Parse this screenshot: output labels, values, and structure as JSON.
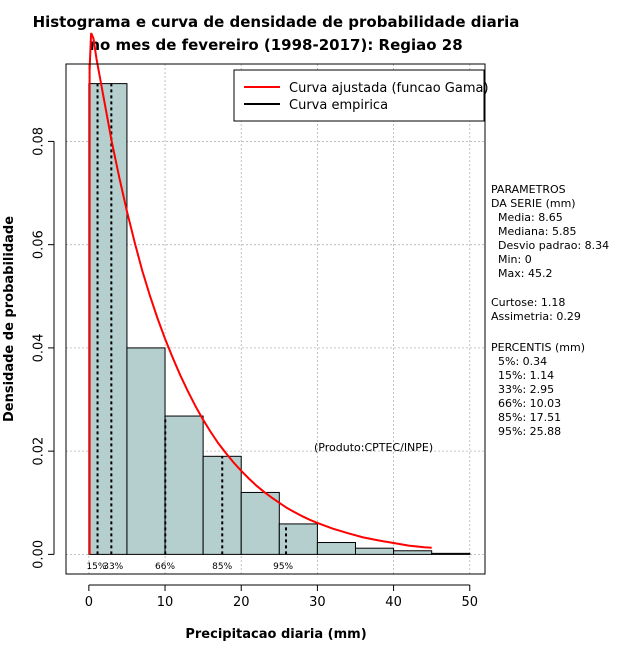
{
  "chart_data": {
    "type": "bar",
    "title": [
      "Histograma e curva de densidade de probabilidade diaria",
      "no mes de fevereiro (1998-2017): Regiao 28"
    ],
    "xlabel": "Precipitacao diaria (mm)",
    "ylabel": "Densidade de probabilidade",
    "xlim": [
      -3,
      52
    ],
    "ylim": [
      -0.0038,
      0.095
    ],
    "xticks": [
      0,
      10,
      20,
      30,
      40,
      50
    ],
    "yticks": [
      0.0,
      0.02,
      0.04,
      0.06,
      0.08
    ],
    "ytick_labels": [
      "0.00",
      "0.02",
      "0.04",
      "0.06",
      "0.08"
    ],
    "grid": true,
    "bins": [
      {
        "from": 0,
        "to": 5,
        "density": 0.0912
      },
      {
        "from": 5,
        "to": 10,
        "density": 0.04
      },
      {
        "from": 10,
        "to": 15,
        "density": 0.0268
      },
      {
        "from": 15,
        "to": 20,
        "density": 0.019
      },
      {
        "from": 20,
        "to": 25,
        "density": 0.012
      },
      {
        "from": 25,
        "to": 30,
        "density": 0.0059
      },
      {
        "from": 30,
        "to": 35,
        "density": 0.0023
      },
      {
        "from": 35,
        "to": 40,
        "density": 0.0012
      },
      {
        "from": 40,
        "to": 45,
        "density": 0.0007
      },
      {
        "from": 45,
        "to": 50,
        "density": 0.0002
      }
    ],
    "gamma_fit": {
      "name": "Curva ajustada (funcao Gama)",
      "color": "#ff0000",
      "x": [
        0.1,
        0.3,
        0.6,
        1,
        1.5,
        2,
        3,
        4,
        5,
        6,
        7,
        8,
        9,
        10,
        11,
        12,
        13,
        14,
        15,
        16,
        17,
        18,
        19,
        20,
        21,
        22,
        23,
        24,
        25,
        26,
        27,
        28,
        29,
        30,
        32,
        34,
        36,
        38,
        40,
        42,
        44,
        45
      ],
      "y": [
        0.094,
        0.101,
        0.1,
        0.096,
        0.092,
        0.088,
        0.08,
        0.073,
        0.0665,
        0.0605,
        0.055,
        0.0502,
        0.0458,
        0.0418,
        0.0381,
        0.0347,
        0.0316,
        0.0287,
        0.0261,
        0.0237,
        0.0215,
        0.0196,
        0.0178,
        0.0162,
        0.0147,
        0.0133,
        0.0121,
        0.011,
        0.01,
        0.009,
        0.0082,
        0.0074,
        0.0067,
        0.0061,
        0.005,
        0.0041,
        0.0033,
        0.0027,
        0.0022,
        0.0017,
        0.0014,
        0.0013
      ]
    },
    "empirical": {
      "name": "Curva empirica",
      "color": "#000000"
    },
    "vertical_line_x": 0.1,
    "percentile_lines": [
      {
        "x": 1.14,
        "label": "15%",
        "label_x": 1.0
      },
      {
        "x": 2.95,
        "label": "33%",
        "label_x": 3.2
      },
      {
        "x": 10.03,
        "label": "66%",
        "label_x": 10.0
      },
      {
        "x": 17.51,
        "label": "85%",
        "label_x": 17.5
      },
      {
        "x": 25.88,
        "label": "95%",
        "label_x": 25.5
      }
    ],
    "bar_color": "#b5cece",
    "legend_position": "top-right",
    "credit": "(Produto:CPTEC/INPE)"
  },
  "parameters": {
    "heading_1": "PARAMETROS",
    "heading_2": "DA SERIE (mm)",
    "media": "Media: 8.65",
    "mediana": "Mediana: 5.85",
    "desvio": "Desvio padrao: 8.34",
    "min": "Min: 0",
    "max": "Max: 45.2",
    "curtose": "Curtose: 1.18",
    "assimetria": "Assimetria: 0.29",
    "percentis_heading": "PERCENTIS (mm)",
    "p5": "5%: 0.34",
    "p15": "15%: 1.14",
    "p33": "33%: 2.95",
    "p66": "66%: 10.03",
    "p85": "85%: 17.51",
    "p95": "95%: 25.88"
  }
}
